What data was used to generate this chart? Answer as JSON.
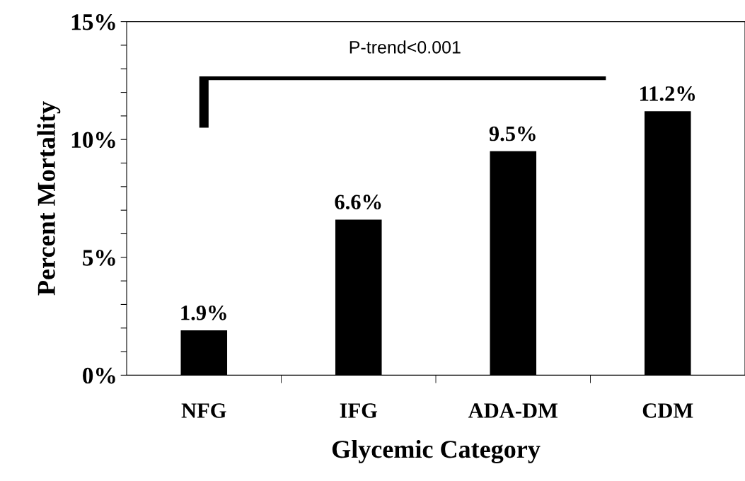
{
  "chart_data": {
    "type": "bar",
    "xlabel": "Glycemic Category",
    "ylabel": "Percent Mortality",
    "categories": [
      "NFG",
      "IFG",
      "ADA-DM",
      "CDM"
    ],
    "values": [
      1.9,
      6.6,
      9.5,
      11.2
    ],
    "color": "#000000",
    "value_labels": [
      "1.9%",
      "6.6%",
      "9.5%",
      "11.2%"
    ],
    "ylim": [
      0,
      15
    ],
    "yticks": [
      {
        "value": 0,
        "label": "0%"
      },
      {
        "value": 1,
        "label": null
      },
      {
        "value": 2,
        "label": null
      },
      {
        "value": 3,
        "label": null
      },
      {
        "value": 4,
        "label": null
      },
      {
        "value": 5,
        "label": "5%"
      },
      {
        "value": 6,
        "label": null
      },
      {
        "value": 7,
        "label": null
      },
      {
        "value": 8,
        "label": null
      },
      {
        "value": 9,
        "label": null
      },
      {
        "value": 10,
        "label": "10%"
      },
      {
        "value": 11,
        "label": null
      },
      {
        "value": 12,
        "label": null
      },
      {
        "value": 13,
        "label": null
      },
      {
        "value": 14,
        "label": null
      },
      {
        "value": 15,
        "label": "15%"
      }
    ],
    "annotations": [
      "P-trend<0.001"
    ],
    "grid": false,
    "legend": false
  }
}
